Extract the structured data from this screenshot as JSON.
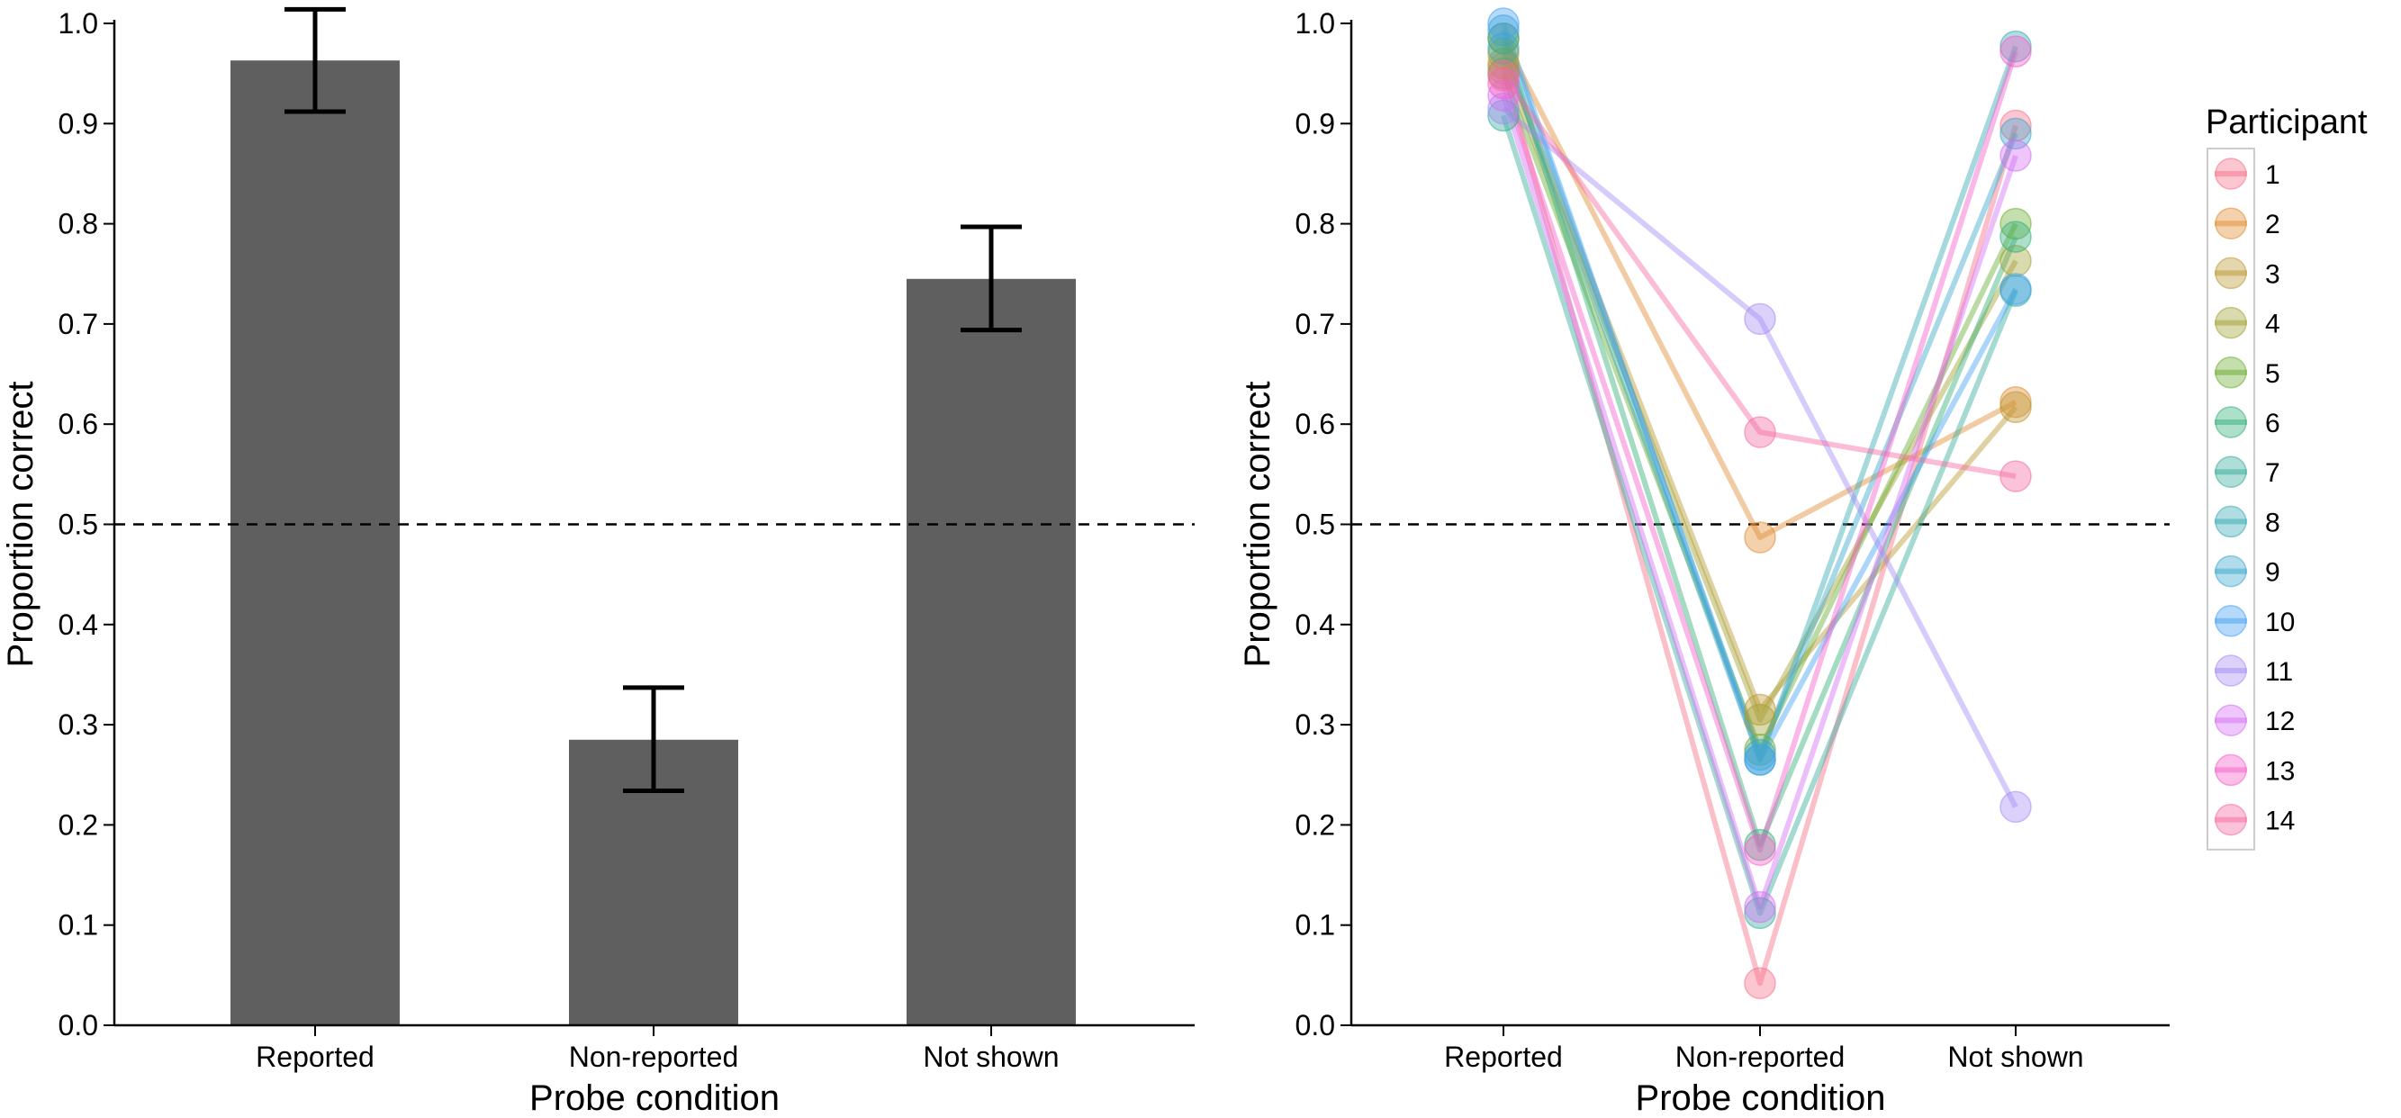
{
  "chart_data": [
    {
      "type": "bar",
      "title": "",
      "xlabel": "Probe condition",
      "ylabel": "Proportion correct",
      "ylim": [
        0,
        1.0
      ],
      "yticks": [
        "0.0",
        "0.1",
        "0.2",
        "0.3",
        "0.4",
        "0.5",
        "0.6",
        "0.7",
        "0.8",
        "0.9",
        "1.0"
      ],
      "categories": [
        "Reported",
        "Non-reported",
        "Not shown"
      ],
      "values": [
        0.963,
        0.285,
        0.745
      ],
      "error_low": [
        0.912,
        0.234,
        0.694
      ],
      "error_high": [
        1.014,
        0.337,
        0.797
      ],
      "bar_color": "#5f5f5f",
      "reference_line": 0.5
    },
    {
      "type": "line",
      "title": "",
      "xlabel": "Probe condition",
      "ylabel": "Proportion correct",
      "ylim": [
        0,
        1.0
      ],
      "yticks": [
        "0.0",
        "0.1",
        "0.2",
        "0.3",
        "0.4",
        "0.5",
        "0.6",
        "0.7",
        "0.8",
        "0.9",
        "1.0"
      ],
      "categories": [
        "Reported",
        "Non-reported",
        "Not shown"
      ],
      "reference_line": 0.5,
      "legend_title": "Participant",
      "legend_position": "right",
      "series": [
        {
          "name": "1",
          "color": "#f77189",
          "values": [
            0.955,
            0.042,
            0.898
          ]
        },
        {
          "name": "2",
          "color": "#e18b32",
          "values": [
            0.985,
            0.487,
            0.622
          ]
        },
        {
          "name": "3",
          "color": "#bb9832",
          "values": [
            0.97,
            0.315,
            0.617
          ]
        },
        {
          "name": "4",
          "color": "#a1a232",
          "values": [
            0.96,
            0.305,
            0.763
          ]
        },
        {
          "name": "5",
          "color": "#6bad32",
          "values": [
            0.95,
            0.275,
            0.8
          ]
        },
        {
          "name": "6",
          "color": "#33b07a",
          "values": [
            0.985,
            0.18,
            0.787
          ]
        },
        {
          "name": "7",
          "color": "#35ac9b",
          "values": [
            0.908,
            0.112,
            0.733
          ]
        },
        {
          "name": "8",
          "color": "#37abb4",
          "values": [
            0.975,
            0.265,
            0.977
          ]
        },
        {
          "name": "9",
          "color": "#3aa8cd",
          "values": [
            0.993,
            0.27,
            0.89
          ]
        },
        {
          "name": "10",
          "color": "#46a1f4",
          "values": [
            1.0,
            0.265,
            0.735
          ]
        },
        {
          "name": "11",
          "color": "#a48cf4",
          "values": [
            0.915,
            0.705,
            0.218
          ]
        },
        {
          "name": "12",
          "color": "#d470f4",
          "values": [
            0.928,
            0.118,
            0.868
          ]
        },
        {
          "name": "13",
          "color": "#f45fc9",
          "values": [
            0.94,
            0.175,
            0.972
          ]
        },
        {
          "name": "14",
          "color": "#f66aa2",
          "values": [
            0.948,
            0.592,
            0.548
          ]
        }
      ]
    }
  ]
}
